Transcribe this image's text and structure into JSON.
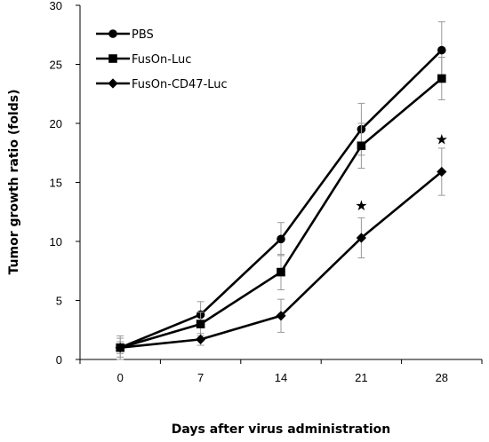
{
  "chart_data": {
    "type": "line",
    "xlabel": "Days after virus administration",
    "ylabel": "Tumor growth ratio (folds)",
    "categories": [
      "0",
      "7",
      "14",
      "21",
      "28"
    ],
    "ylim": [
      0,
      30
    ],
    "yticks": [
      "0",
      "5",
      "10",
      "15",
      "20",
      "25",
      "30"
    ],
    "grid": false,
    "legend_position": "top-left",
    "series": [
      {
        "name": "PBS",
        "marker": "circle",
        "values": [
          1.0,
          3.8,
          10.2,
          19.5,
          26.2
        ],
        "errors": [
          1.0,
          1.1,
          1.4,
          2.2,
          2.4
        ]
      },
      {
        "name": "FusOn-Luc",
        "marker": "square",
        "values": [
          1.0,
          3.0,
          7.4,
          18.1,
          23.8
        ],
        "errors": [
          0.8,
          1.0,
          1.5,
          1.9,
          1.8
        ]
      },
      {
        "name": "FusOn-CD47-Luc",
        "marker": "diamond",
        "values": [
          1.0,
          1.7,
          3.7,
          10.3,
          15.9
        ],
        "errors": [
          0.5,
          0.5,
          1.4,
          1.7,
          2.0
        ]
      }
    ],
    "annotations": [
      {
        "x": "21",
        "y": 13.1,
        "text": "★"
      },
      {
        "x": "28",
        "y": 18.7,
        "text": "★"
      }
    ],
    "color": "#000000"
  }
}
